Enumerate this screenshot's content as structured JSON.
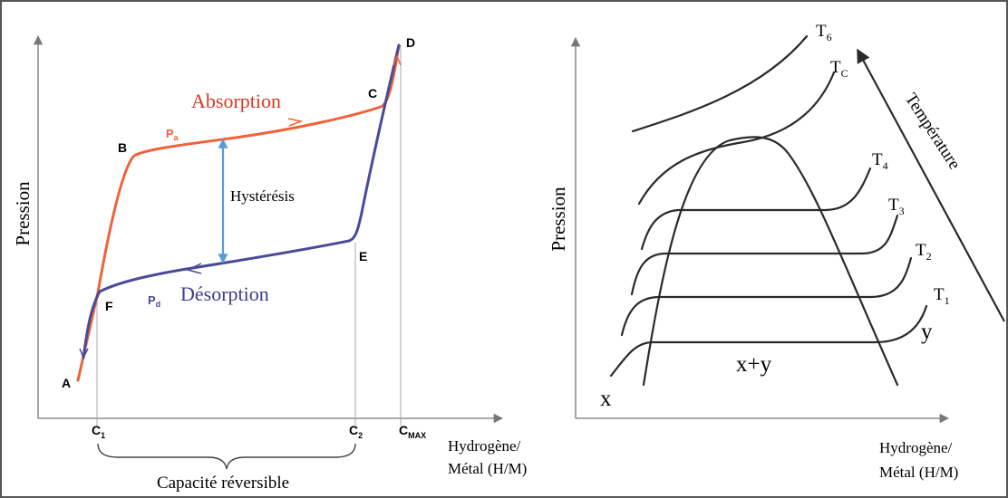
{
  "left_panel": {
    "y_axis_label": "Pression",
    "x_axis_label_line1": "Hydrogène/",
    "x_axis_label_line2": "Métal (H/M)",
    "absorption_label": "Absorption",
    "desorption_label": "Désorption",
    "hysteresis_label": "Hystérésis",
    "pa_label": "P",
    "pa_sub": "a",
    "pd_label": "P",
    "pd_sub": "d",
    "points": {
      "A": "A",
      "B": "B",
      "C": "C",
      "D": "D",
      "E": "E",
      "F": "F"
    },
    "c1": "C",
    "c1_sub": "1",
    "c2": "C",
    "c2_sub": "2",
    "cmax": "C",
    "cmax_sub": "MAX",
    "capacity_label": "Capacité réversible",
    "colors": {
      "absorption": "#f0623a",
      "desorption": "#4a4a9a",
      "hysteresis_arrow": "#5b9bd5"
    }
  },
  "right_panel": {
    "y_axis_label": "Pression",
    "x_axis_label_line1": "Hydrogène/",
    "x_axis_label_line2": "Métal (H/M)",
    "temperature_label": "Température",
    "isotherms": [
      {
        "base": "T",
        "sub": "1"
      },
      {
        "base": "T",
        "sub": "2"
      },
      {
        "base": "T",
        "sub": "3"
      },
      {
        "base": "T",
        "sub": "4"
      },
      {
        "base": "T",
        "sub": "C"
      },
      {
        "base": "T",
        "sub": "6"
      }
    ],
    "phase_x": "x",
    "phase_y": "y",
    "phase_xy": "x+y"
  }
}
